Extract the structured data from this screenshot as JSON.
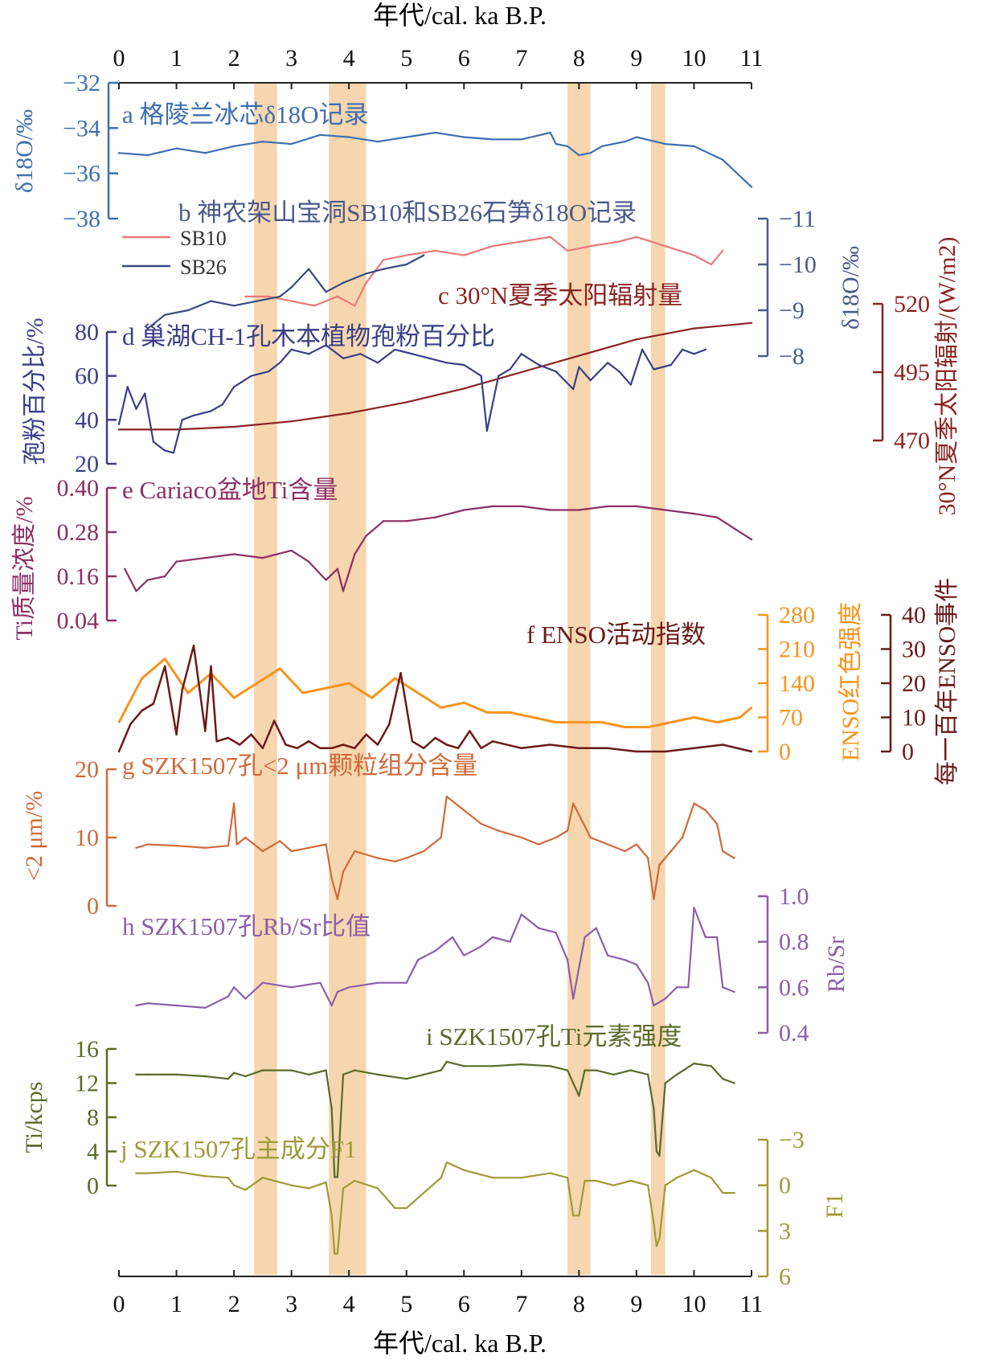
{
  "figure": {
    "x_axis": {
      "label": "年代/cal. ka B.P.",
      "ticks": [
        "0",
        "1",
        "2",
        "3",
        "4",
        "5",
        "6",
        "7",
        "8",
        "9",
        "10",
        "11"
      ],
      "range": [
        0,
        11
      ]
    },
    "bands": [
      [
        2.35,
        2.75
      ],
      [
        3.65,
        4.3
      ],
      [
        7.8,
        8.2
      ],
      [
        9.25,
        9.5
      ]
    ]
  },
  "chart_data": [
    {
      "id": "a",
      "type": "line",
      "title": "a 格陵兰冰芯δ18O记录",
      "ylabel": "δ18O/‰",
      "yticks": [
        "-32",
        "-34",
        "-36",
        "-38"
      ],
      "ylim": [
        -38,
        -32
      ],
      "y_axis_side": "left",
      "y_reversed": false,
      "color": "#3f6fb0",
      "series": [
        {
          "x": [
            0.0,
            0.5,
            1.0,
            1.5,
            2.0,
            2.5,
            3.0,
            3.5,
            4.0,
            4.5,
            5.0,
            5.5,
            6.0,
            6.5,
            7.0,
            7.5,
            7.6,
            7.8,
            8.0,
            8.2,
            8.4,
            8.8,
            9.0,
            9.5,
            10.0,
            10.5,
            11.0
          ],
          "y": [
            -35.1,
            -35.2,
            -34.9,
            -35.1,
            -34.8,
            -34.6,
            -34.7,
            -34.3,
            -34.4,
            -34.6,
            -34.4,
            -34.2,
            -34.4,
            -34.5,
            -34.5,
            -34.2,
            -34.7,
            -34.8,
            -35.2,
            -35.1,
            -34.8,
            -34.6,
            -34.4,
            -34.7,
            -34.8,
            -35.4,
            -36.6
          ]
        }
      ]
    },
    {
      "id": "b",
      "type": "line",
      "title": "b 神农架山宝洞SB10和SB26石笋δ18O记录",
      "ylabel": "δ18O/‰",
      "yticks": [
        "-11",
        "-10",
        "-9",
        "-8"
      ],
      "ylim": [
        -11,
        -8
      ],
      "y_axis_side": "right",
      "y_reversed": true,
      "series": [
        {
          "name": "SB10",
          "color": "#e8787a",
          "x": [
            2.2,
            2.6,
            3.0,
            3.4,
            3.8,
            4.1,
            4.3,
            4.6,
            5.0,
            5.5,
            6.0,
            6.5,
            7.0,
            7.5,
            7.8,
            8.2,
            8.7,
            9.0,
            9.5,
            10.0,
            10.3,
            10.5
          ],
          "y": [
            -9.3,
            -9.3,
            -9.2,
            -9.1,
            -9.3,
            -9.1,
            -9.6,
            -10.1,
            -10.2,
            -10.3,
            -10.2,
            -10.4,
            -10.5,
            -10.6,
            -10.3,
            -10.4,
            -10.5,
            -10.6,
            -10.4,
            -10.2,
            -10.0,
            -10.3
          ]
        },
        {
          "name": "SB26",
          "color": "#3b4a7e",
          "x": [
            0.5,
            0.8,
            1.2,
            1.6,
            2.0,
            2.4,
            2.8,
            3.0,
            3.3,
            3.6,
            3.9,
            4.1,
            4.3,
            4.6,
            5.0,
            5.3
          ],
          "y": [
            -8.6,
            -8.9,
            -9.0,
            -9.2,
            -9.1,
            -9.2,
            -9.3,
            -9.5,
            -9.9,
            -9.4,
            -9.6,
            -9.7,
            -9.8,
            -9.9,
            -10.0,
            -10.2
          ]
        }
      ]
    },
    {
      "id": "c",
      "type": "line",
      "title": "c 30°N夏季太阳辐射量",
      "ylabel": "30°N夏季太阳辐射/(W/m2)",
      "yticks": [
        "520",
        "495",
        "470"
      ],
      "ylim": [
        470,
        520
      ],
      "y_axis_side": "right",
      "y_reversed": false,
      "color": "#8b2323",
      "series": [
        {
          "x": [
            0,
            1,
            2,
            3,
            4,
            5,
            6,
            7,
            8,
            9,
            10,
            11
          ],
          "y": [
            474,
            474,
            475,
            477,
            480,
            484,
            489,
            495,
            501,
            507,
            511,
            513
          ]
        }
      ]
    },
    {
      "id": "d",
      "type": "line",
      "title": "d 巢湖CH-1孔木本植物孢粉百分比",
      "ylabel": "孢粉百分比/%",
      "yticks": [
        "80",
        "60",
        "40",
        "20"
      ],
      "ylim": [
        20,
        80
      ],
      "y_axis_side": "left",
      "y_reversed": false,
      "color": "#3b3f87",
      "series": [
        {
          "x": [
            0.0,
            0.15,
            0.3,
            0.45,
            0.6,
            0.8,
            0.95,
            1.1,
            1.3,
            1.6,
            1.8,
            2.0,
            2.3,
            2.6,
            2.8,
            3.0,
            3.3,
            3.6,
            3.9,
            4.2,
            4.5,
            4.8,
            5.1,
            5.4,
            5.7,
            6.0,
            6.3,
            6.4,
            6.6,
            6.8,
            7.0,
            7.3,
            7.6,
            7.9,
            8.0,
            8.2,
            8.5,
            8.7,
            8.9,
            9.1,
            9.3,
            9.6,
            9.8,
            10.0,
            10.2
          ],
          "y": [
            38,
            55,
            45,
            52,
            30,
            26,
            25,
            40,
            42,
            44,
            47,
            55,
            60,
            62,
            66,
            72,
            70,
            74,
            68,
            70,
            66,
            72,
            70,
            68,
            66,
            65,
            60,
            35,
            60,
            63,
            70,
            65,
            62,
            54,
            64,
            58,
            66,
            62,
            56,
            72,
            63,
            65,
            72,
            70,
            72
          ]
        }
      ]
    },
    {
      "id": "e",
      "type": "line",
      "title": "e Cariaco盆地Ti含量",
      "ylabel": "Ti质量浓度/%",
      "yticks": [
        "0.40",
        "0.28",
        "0.16",
        "0.04"
      ],
      "ylim": [
        0.04,
        0.4
      ],
      "y_axis_side": "left",
      "y_reversed": false,
      "color": "#8c2f64",
      "series": [
        {
          "x": [
            0.1,
            0.3,
            0.5,
            0.8,
            1.0,
            1.5,
            2.0,
            2.5,
            3.0,
            3.3,
            3.6,
            3.8,
            3.9,
            4.1,
            4.3,
            4.6,
            5.0,
            5.5,
            6.0,
            6.5,
            7.0,
            7.5,
            8.0,
            8.5,
            9.0,
            9.5,
            10.0,
            10.4,
            10.7,
            11.0
          ],
          "y": [
            0.18,
            0.12,
            0.15,
            0.16,
            0.2,
            0.21,
            0.22,
            0.21,
            0.23,
            0.2,
            0.15,
            0.18,
            0.12,
            0.22,
            0.27,
            0.31,
            0.31,
            0.32,
            0.34,
            0.35,
            0.35,
            0.34,
            0.34,
            0.35,
            0.35,
            0.34,
            0.33,
            0.32,
            0.29,
            0.26
          ]
        }
      ]
    },
    {
      "id": "f",
      "type": "line",
      "title": "f ENSO活动指数",
      "ylabel": "ENSO红色强度",
      "ylabel_right": "每一百年ENSO事件",
      "yticks": [
        "280",
        "210",
        "140",
        "70",
        "0"
      ],
      "yticks_right": [
        "40",
        "30",
        "20",
        "10",
        "0"
      ],
      "ylim": [
        0,
        280
      ],
      "ylim_right": [
        0,
        40
      ],
      "series": [
        {
          "name": "ENSO红色强度",
          "color": "#f7941d",
          "x": [
            0.0,
            0.4,
            0.8,
            1.2,
            1.6,
            2.0,
            2.4,
            2.8,
            3.2,
            3.6,
            4.0,
            4.4,
            4.8,
            5.2,
            5.6,
            6.0,
            6.4,
            6.8,
            7.2,
            7.6,
            8.0,
            8.4,
            8.8,
            9.2,
            9.6,
            10.0,
            10.4,
            10.8,
            11.0
          ],
          "y": [
            60,
            150,
            190,
            120,
            160,
            110,
            140,
            170,
            120,
            130,
            140,
            110,
            150,
            120,
            90,
            100,
            80,
            80,
            70,
            60,
            60,
            60,
            50,
            50,
            60,
            70,
            60,
            70,
            90
          ]
        },
        {
          "name": "每一百年ENSO事件",
          "color": "#6b1a1a",
          "x": [
            0.0,
            0.2,
            0.4,
            0.6,
            0.8,
            1.0,
            1.1,
            1.3,
            1.5,
            1.6,
            1.7,
            1.9,
            2.1,
            2.3,
            2.5,
            2.7,
            2.9,
            3.1,
            3.3,
            3.5,
            3.7,
            3.9,
            4.1,
            4.3,
            4.5,
            4.7,
            4.9,
            5.1,
            5.3,
            5.5,
            5.7,
            5.9,
            6.1,
            6.3,
            6.5,
            7.0,
            7.5,
            8.0,
            8.5,
            9.0,
            9.5,
            10.0,
            10.5,
            11.0
          ],
          "y": [
            0,
            8,
            12,
            14,
            25,
            5,
            18,
            31,
            6,
            25,
            3,
            4,
            2,
            5,
            1,
            9,
            2,
            1,
            3,
            1,
            1,
            2,
            1,
            5,
            2,
            8,
            23,
            3,
            1,
            4,
            2,
            1,
            6,
            1,
            3,
            1,
            2,
            1,
            1,
            0,
            0,
            1,
            2,
            0
          ]
        }
      ]
    },
    {
      "id": "g",
      "type": "line",
      "title": "g SZK1507孔<2 μm颗粒组分含量",
      "ylabel": "<2 μm/%",
      "yticks": [
        "20",
        "10",
        "0"
      ],
      "ylim": [
        0,
        20
      ],
      "y_axis_side": "left",
      "y_reversed": false,
      "color": "#d06a3a",
      "series": [
        {
          "x": [
            0.3,
            0.5,
            1.0,
            1.5,
            1.9,
            2.0,
            2.05,
            2.2,
            2.5,
            2.8,
            3.0,
            3.3,
            3.6,
            3.7,
            3.8,
            3.9,
            4.1,
            4.5,
            4.8,
            5.0,
            5.3,
            5.6,
            5.7,
            6.0,
            6.3,
            6.6,
            7.0,
            7.3,
            7.6,
            7.8,
            7.9,
            8.2,
            8.5,
            8.8,
            9.0,
            9.2,
            9.3,
            9.4,
            9.6,
            9.8,
            10.0,
            10.2,
            10.4,
            10.5,
            10.7
          ],
          "y": [
            8.5,
            9,
            8.8,
            8.5,
            8.8,
            15,
            9,
            10,
            8,
            9.5,
            8,
            8.5,
            9,
            4,
            1,
            5,
            8,
            7,
            6.5,
            7,
            8,
            10,
            16,
            14,
            12,
            11,
            10,
            9,
            10,
            11,
            15,
            10,
            9,
            8,
            9,
            7,
            1,
            6,
            8,
            10,
            15,
            14,
            12,
            8,
            7
          ]
        }
      ]
    },
    {
      "id": "h",
      "type": "line",
      "title": "h SZK1507孔Rb/Sr比值",
      "ylabel": "Rb/Sr",
      "yticks": [
        "1.0",
        "0.8",
        "0.6",
        "0.4"
      ],
      "ylim": [
        0.4,
        1.0
      ],
      "y_axis_side": "right",
      "y_reversed": false,
      "color": "#8c5fa8",
      "series": [
        {
          "x": [
            0.3,
            0.5,
            1.0,
            1.5,
            1.9,
            2.0,
            2.2,
            2.5,
            3.0,
            3.5,
            3.7,
            3.8,
            4.0,
            4.5,
            5.0,
            5.2,
            5.5,
            5.8,
            6.0,
            6.3,
            6.5,
            6.8,
            7.0,
            7.3,
            7.6,
            7.8,
            7.9,
            8.1,
            8.3,
            8.5,
            8.8,
            9.0,
            9.2,
            9.3,
            9.5,
            9.7,
            9.9,
            10.0,
            10.2,
            10.4,
            10.5,
            10.7
          ],
          "y": [
            0.52,
            0.53,
            0.52,
            0.51,
            0.56,
            0.6,
            0.55,
            0.62,
            0.6,
            0.62,
            0.52,
            0.58,
            0.6,
            0.62,
            0.62,
            0.72,
            0.76,
            0.82,
            0.74,
            0.78,
            0.82,
            0.8,
            0.92,
            0.86,
            0.84,
            0.72,
            0.55,
            0.82,
            0.86,
            0.74,
            0.72,
            0.7,
            0.62,
            0.52,
            0.55,
            0.6,
            0.6,
            0.95,
            0.82,
            0.82,
            0.6,
            0.58
          ]
        }
      ]
    },
    {
      "id": "i",
      "type": "line",
      "title": "i SZK1507孔Ti元素强度",
      "ylabel": "Ti/kcps",
      "yticks": [
        "16",
        "12",
        "8",
        "4",
        "0"
      ],
      "ylim": [
        0,
        16
      ],
      "y_axis_side": "left",
      "y_reversed": false,
      "color": "#5a6b2a",
      "series": [
        {
          "x": [
            0.3,
            0.5,
            1.0,
            1.5,
            1.9,
            2.0,
            2.2,
            2.5,
            3.0,
            3.3,
            3.6,
            3.7,
            3.75,
            3.8,
            3.9,
            4.1,
            4.5,
            5.0,
            5.3,
            5.6,
            5.7,
            6.0,
            6.5,
            7.0,
            7.5,
            7.8,
            7.9,
            8.0,
            8.1,
            8.3,
            8.6,
            8.9,
            9.2,
            9.3,
            9.35,
            9.4,
            9.5,
            9.7,
            10.0,
            10.3,
            10.5,
            10.7
          ],
          "y": [
            13,
            13,
            13,
            12.8,
            12.5,
            13.2,
            12.8,
            13.5,
            13.5,
            13,
            13.5,
            9,
            1,
            1,
            13,
            13.5,
            13,
            12.5,
            13,
            13.5,
            14.5,
            14,
            14,
            14.2,
            14,
            13.5,
            12,
            10.5,
            13.5,
            13.5,
            13,
            13.5,
            13,
            9,
            4,
            3.5,
            12,
            13,
            14.3,
            14,
            12.5,
            12
          ]
        }
      ]
    },
    {
      "id": "j",
      "type": "line",
      "title": "j SZK1507孔主成分F1",
      "ylabel": "F1",
      "yticks": [
        "-3",
        "0",
        "3",
        "6"
      ],
      "ylim": [
        -3,
        6
      ],
      "y_axis_side": "right",
      "y_reversed": true,
      "color": "#9e9a36",
      "series": [
        {
          "x": [
            0.3,
            0.5,
            1.0,
            1.5,
            1.9,
            2.0,
            2.2,
            2.5,
            3.0,
            3.3,
            3.6,
            3.7,
            3.75,
            3.8,
            3.9,
            4.1,
            4.5,
            4.8,
            5.0,
            5.3,
            5.6,
            5.7,
            6.0,
            6.5,
            7.0,
            7.5,
            7.8,
            7.9,
            8.0,
            8.1,
            8.3,
            8.6,
            8.9,
            9.2,
            9.3,
            9.35,
            9.4,
            9.5,
            9.7,
            10.0,
            10.3,
            10.5,
            10.7
          ],
          "y": [
            -0.8,
            -0.8,
            -0.9,
            -0.6,
            -0.5,
            0,
            0.3,
            -0.5,
            0,
            0.2,
            -0.2,
            2,
            4.5,
            4.5,
            0.2,
            -0.3,
            0.2,
            1.5,
            1.5,
            0.5,
            -0.5,
            -1.5,
            -1,
            -0.5,
            -0.5,
            -0.8,
            -0.5,
            2,
            2,
            -0.3,
            -0.3,
            0,
            -0.3,
            0,
            2.5,
            4,
            3.5,
            0,
            -0.5,
            -1,
            -0.5,
            0.5,
            0.5
          ]
        }
      ]
    }
  ]
}
